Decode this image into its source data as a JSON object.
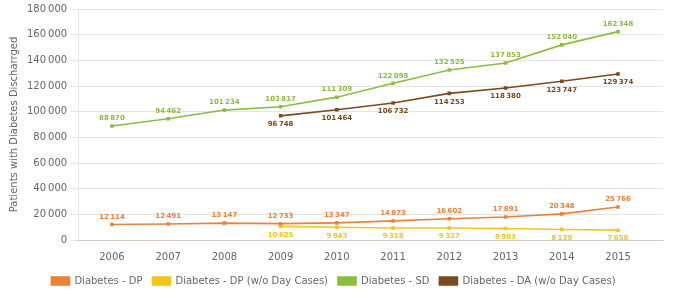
{
  "chart_data": {
    "type": "line",
    "x": [
      2006,
      2007,
      2008,
      2009,
      2010,
      2011,
      2012,
      2013,
      2014,
      2015
    ],
    "xlim": [
      2005.4,
      2015.8
    ],
    "xticks": [
      2006,
      2007,
      2008,
      2009,
      2010,
      2011,
      2012,
      2013,
      2014,
      2015
    ],
    "ylabel": "Patients with Diabetes Discharrged",
    "ylim": [
      0,
      180000
    ],
    "yticks": [
      0,
      {
        "value": 20000,
        "label": "20 000"
      },
      {
        "value": 40000,
        "label": "40 000"
      },
      {
        "value": 60000,
        "label": "60 000"
      },
      {
        "value": 80000,
        "label": "80 000"
      },
      {
        "value": 100000,
        "label": "100 000"
      },
      {
        "value": 120000,
        "label": "120 000"
      },
      {
        "value": 140000,
        "label": "140 000"
      },
      {
        "value": 160000,
        "label": "160 000"
      },
      {
        "value": 180000,
        "label": "180 000"
      }
    ],
    "grid": true,
    "legend": "bottom",
    "data_labels": true,
    "series": [
      {
        "name": "Diabetes - DP",
        "color": "#E8833A",
        "marker": "square",
        "values": [
          12114,
          12491,
          13147,
          12733,
          13347,
          14873,
          16602,
          17891,
          20348,
          25766
        ],
        "value_labels": [
          "12 114",
          "12 491",
          "13 147",
          "12 733",
          "13 347",
          "14 873",
          "16 602",
          "17 891",
          "20 348",
          "25 766"
        ]
      },
      {
        "name": "Diabetes - DP (w/o Day Cases)",
        "color": "#F5C518",
        "marker": "square",
        "values": [
          null,
          null,
          null,
          10625,
          9943,
          9318,
          9327,
          8903,
          8139,
          7658
        ],
        "value_labels": [
          null,
          null,
          null,
          "10 625",
          "9 943",
          "9 318",
          "9 327",
          "8 903",
          "8 139",
          "7 658"
        ]
      },
      {
        "name": "Diabetes - SD",
        "color": "#8BBD3F",
        "marker": "square",
        "values": [
          88870,
          94462,
          101234,
          103817,
          111309,
          122098,
          132525,
          137853,
          152040,
          162348
        ],
        "value_labels": [
          "88 870",
          "94 462",
          "101 234",
          "103 817",
          "111 309",
          "122 098",
          "132 525",
          "137 853",
          "152 040",
          "162 348"
        ]
      },
      {
        "name": "Diabetes - DA (w/o Day Cases)",
        "color": "#7B4A1E",
        "marker": "square",
        "values": [
          null,
          null,
          null,
          96748,
          101464,
          106732,
          114253,
          118380,
          123747,
          129374
        ],
        "value_labels": [
          null,
          null,
          null,
          "96 748",
          "101 464",
          "106 732",
          "114 253",
          "118 380",
          "123 747",
          "129 374"
        ]
      }
    ]
  }
}
